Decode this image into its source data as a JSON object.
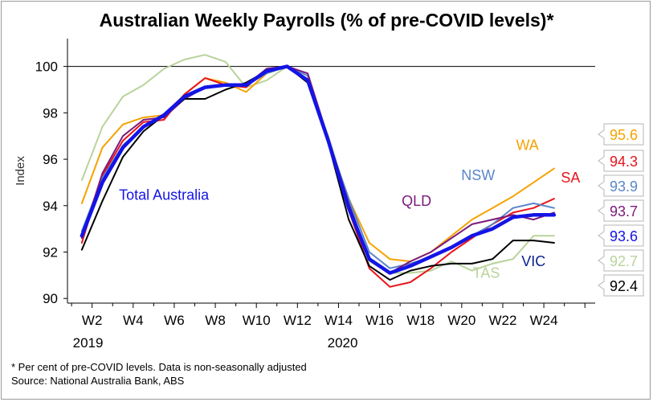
{
  "chart_data": {
    "type": "line",
    "title": "Australian Weekly Payrolls (% of pre-COVID levels)*",
    "ylabel": "Index",
    "ylim": [
      89.8,
      101.2
    ],
    "yticks": [
      90,
      92,
      94,
      96,
      98,
      100
    ],
    "reference_line": 100,
    "xticks": [
      "W2",
      "W4",
      "W6",
      "W8",
      "W10",
      "W12",
      "W14",
      "W16",
      "W18",
      "W20",
      "W22",
      "W24"
    ],
    "xticks_x": [
      2,
      4,
      6,
      8,
      10,
      12,
      14,
      16,
      18,
      20,
      22,
      24
    ],
    "year_labels": [
      {
        "label": "2019",
        "x": 1.8
      },
      {
        "label": "2020",
        "x": 14.2
      }
    ],
    "xlim": [
      0.8,
      26.5
    ],
    "x": [
      1.5,
      2.5,
      3.5,
      4.5,
      5.5,
      6.5,
      7.5,
      8.5,
      9.5,
      10.5,
      11.5,
      12.5,
      13.5,
      14.5,
      15.5,
      16.5,
      17.5,
      18.5,
      19.5,
      20.5,
      21.5,
      22.5,
      23.5,
      24.5
    ],
    "series": [
      {
        "name": "TAS",
        "color": "#b9d39b",
        "width": 2,
        "values": [
          95.1,
          97.4,
          98.7,
          99.2,
          99.9,
          100.3,
          100.5,
          100.2,
          99.1,
          99.4,
          100.0,
          99.4,
          97.0,
          94.2,
          91.6,
          91.1,
          91.1,
          91.2,
          91.6,
          91.2,
          91.5,
          91.7,
          92.7,
          92.7
        ]
      },
      {
        "name": "WA",
        "color": "#f5a200",
        "width": 2,
        "values": [
          94.1,
          96.5,
          97.5,
          97.8,
          97.9,
          98.8,
          99.5,
          99.3,
          98.9,
          99.7,
          100.0,
          99.3,
          96.8,
          94.3,
          92.4,
          91.7,
          91.6,
          92.0,
          92.7,
          93.4,
          93.9,
          94.4,
          95.0,
          95.6
        ]
      },
      {
        "name": "SA",
        "color": "#e8141b",
        "width": 2,
        "values": [
          92.4,
          95.3,
          96.8,
          97.6,
          97.7,
          98.8,
          99.5,
          99.2,
          99.1,
          99.9,
          100.0,
          99.4,
          96.7,
          93.8,
          91.3,
          90.5,
          90.7,
          91.3,
          92.0,
          92.6,
          93.2,
          93.7,
          93.9,
          94.3
        ]
      },
      {
        "name": "NSW",
        "color": "#5a86c8",
        "width": 2,
        "values": [
          92.9,
          95.2,
          96.6,
          97.4,
          97.9,
          98.6,
          99.1,
          99.2,
          99.2,
          99.7,
          100.0,
          99.6,
          96.8,
          94.3,
          92.0,
          91.3,
          91.5,
          91.8,
          92.2,
          92.7,
          93.2,
          93.9,
          94.1,
          93.9
        ]
      },
      {
        "name": "QLD",
        "color": "#7b1a7b",
        "width": 2,
        "values": [
          92.6,
          95.4,
          97.0,
          97.7,
          97.8,
          98.6,
          99.1,
          99.2,
          99.2,
          99.9,
          100.0,
          99.7,
          96.9,
          94.1,
          91.7,
          91.1,
          91.6,
          92.0,
          92.6,
          93.2,
          93.4,
          93.6,
          93.4,
          93.7
        ]
      },
      {
        "name": "VIC",
        "color": "#000000",
        "width": 2,
        "values": [
          92.1,
          94.2,
          96.1,
          97.2,
          97.9,
          98.6,
          98.6,
          99.0,
          99.3,
          99.8,
          100.0,
          99.3,
          96.7,
          93.4,
          91.4,
          90.8,
          91.2,
          91.4,
          91.5,
          91.5,
          91.7,
          92.5,
          92.5,
          92.4
        ]
      },
      {
        "name": "Total Australia",
        "color": "#1414e6",
        "width": 4.5,
        "values": [
          92.7,
          95.0,
          96.5,
          97.4,
          97.9,
          98.7,
          99.1,
          99.2,
          99.2,
          99.8,
          100.0,
          99.4,
          96.8,
          93.9,
          91.7,
          91.1,
          91.4,
          91.8,
          92.2,
          92.7,
          93.0,
          93.5,
          93.6,
          93.6
        ]
      }
    ],
    "series_labels": [
      {
        "text": "WA",
        "color": "#f5a200",
        "x": 23.2,
        "y": 96.4
      },
      {
        "text": "SA",
        "color": "#e8141b",
        "x": 25.3,
        "y": 95.0
      },
      {
        "text": "NSW",
        "color": "#5a86c8",
        "x": 20.8,
        "y": 95.1
      },
      {
        "text": "QLD",
        "color": "#7b1a7b",
        "x": 17.8,
        "y": 94.0
      },
      {
        "text": "Total Australia",
        "color": "#1414e6",
        "x": 5.5,
        "y": 94.25
      },
      {
        "text": "TAS",
        "color": "#b9d39b",
        "x": 21.2,
        "y": 90.9
      },
      {
        "text": "VIC",
        "color": "#0a1f8f",
        "x": 23.5,
        "y": 91.4
      }
    ],
    "end_labels": [
      {
        "text": "95.6",
        "color": "#f5a200",
        "y": 95.6
      },
      {
        "text": "94.3",
        "color": "#e8141b",
        "y": 94.3
      },
      {
        "text": "93.9",
        "color": "#5a86c8",
        "y": 93.9
      },
      {
        "text": "93.7",
        "color": "#7b1a7b",
        "y": 93.7
      },
      {
        "text": "93.6",
        "color": "#1414e6",
        "y": 93.6
      },
      {
        "text": "92.7",
        "color": "#b9d39b",
        "y": 92.7
      },
      {
        "text": "92.4",
        "color": "#000000",
        "y": 92.4
      }
    ],
    "footnote": "* Per cent of pre-COVID levels. Data is non-seasonally adjusted",
    "source": "Source: National Australia Bank, ABS"
  }
}
